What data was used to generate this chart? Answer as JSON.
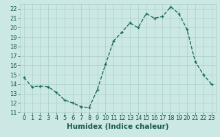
{
  "x": [
    0,
    1,
    2,
    3,
    4,
    5,
    6,
    7,
    8,
    9,
    10,
    11,
    12,
    13,
    14,
    15,
    16,
    17,
    18,
    19,
    20,
    21,
    22,
    23
  ],
  "y": [
    14.7,
    13.7,
    13.8,
    13.7,
    13.1,
    12.3,
    12.0,
    11.6,
    11.5,
    13.4,
    16.1,
    18.6,
    19.5,
    20.5,
    20.0,
    21.5,
    21.0,
    21.2,
    22.2,
    21.5,
    19.8,
    16.4,
    15.0,
    14.0
  ],
  "xlabel": "Humidex (Indice chaleur)",
  "xlim": [
    -0.5,
    23.5
  ],
  "ylim": [
    11,
    22.5
  ],
  "yticks": [
    11,
    12,
    13,
    14,
    15,
    16,
    17,
    18,
    19,
    20,
    21,
    22
  ],
  "xticks": [
    0,
    1,
    2,
    3,
    4,
    5,
    6,
    7,
    8,
    9,
    10,
    11,
    12,
    13,
    14,
    15,
    16,
    17,
    18,
    19,
    20,
    21,
    22,
    23
  ],
  "line_color": "#1a6b5a",
  "marker": "+",
  "bg_color": "#cce8e4",
  "grid_color": "#aacfca",
  "tick_label_color": "#1a5c4a",
  "xlabel_color": "#1a5c4a",
  "xlabel_fontsize": 7.5,
  "tick_fontsize": 6.0,
  "linewidth": 1.0,
  "markersize": 3.5,
  "markeredgewidth": 1.0
}
